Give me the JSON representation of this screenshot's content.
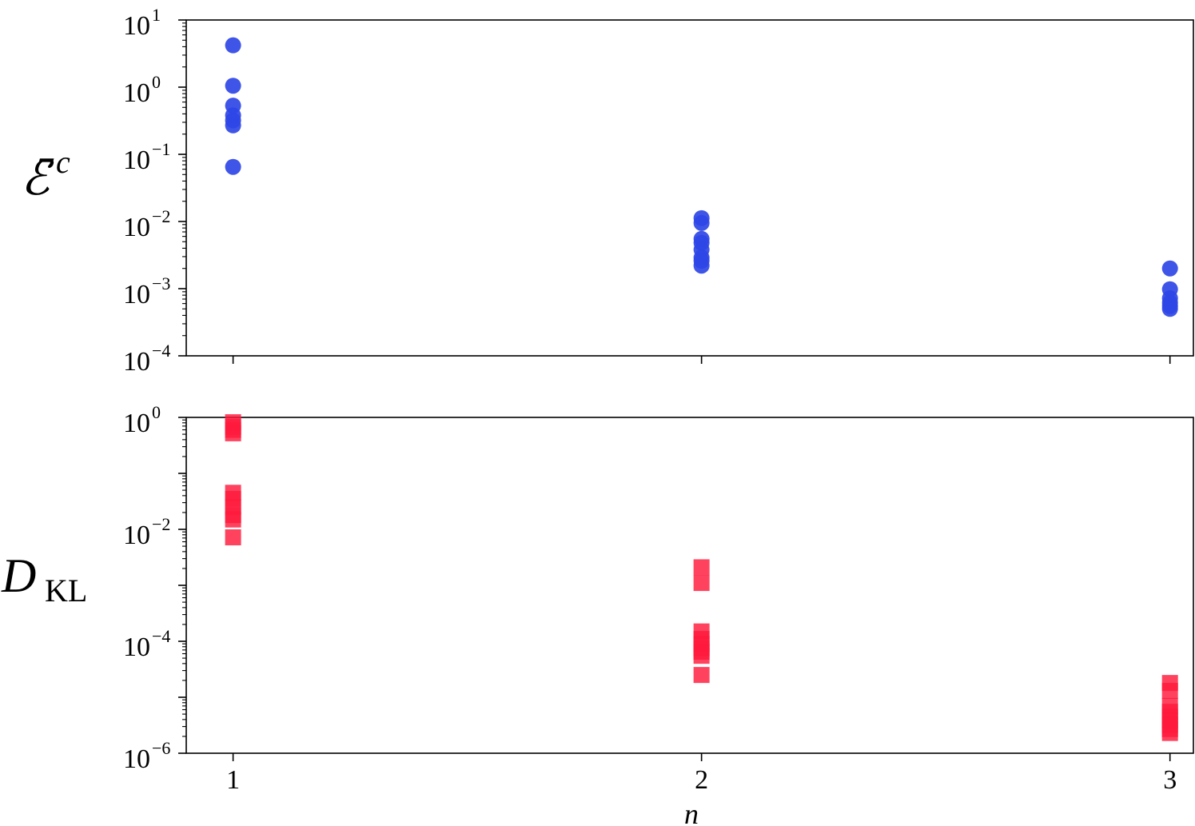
{
  "chart_data": [
    {
      "type": "scatter",
      "panel": "top",
      "ylabel": {
        "base": "ℰ̄",
        "sup": "c"
      },
      "yscale": "log",
      "ylim": [
        0.0001,
        10
      ],
      "yticks": [
        {
          "base": "10",
          "exp": "1"
        },
        {
          "base": "10",
          "exp": "0"
        },
        {
          "base": "10",
          "exp": "−1"
        },
        {
          "base": "10",
          "exp": "−2"
        },
        {
          "base": "10",
          "exp": "−3"
        },
        {
          "base": "10",
          "exp": "−4"
        }
      ],
      "xlim": [
        0.9,
        3.05
      ],
      "xticks": [
        "1",
        "2",
        "3"
      ],
      "marker": "circle",
      "color": "#2f46e6",
      "series": [
        {
          "points": [
            [
              1,
              4.2
            ],
            [
              1,
              1.05
            ],
            [
              1,
              0.53
            ],
            [
              1,
              0.38
            ],
            [
              1,
              0.32
            ],
            [
              1,
              0.27
            ],
            [
              1,
              0.065
            ],
            [
              2,
              0.0112
            ],
            [
              2,
              0.0095
            ],
            [
              2,
              0.0055
            ],
            [
              2,
              0.0048
            ],
            [
              2,
              0.0038
            ],
            [
              2,
              0.0029
            ],
            [
              2,
              0.0026
            ],
            [
              2,
              0.0022
            ],
            [
              3,
              0.002
            ],
            [
              3,
              0.00098
            ],
            [
              3,
              0.00072
            ],
            [
              3,
              0.00062
            ],
            [
              3,
              0.00055
            ],
            [
              3,
              0.0005
            ]
          ]
        }
      ]
    },
    {
      "type": "scatter",
      "panel": "bottom",
      "ylabel": {
        "base": "D",
        "sub": "KL"
      },
      "yscale": "log",
      "ylim": [
        1e-06,
        1
      ],
      "yticks": [
        {
          "base": "10",
          "exp": "0"
        },
        {
          "base": "10",
          "exp": "−2"
        },
        {
          "base": "10",
          "exp": "−4"
        },
        {
          "base": "10",
          "exp": "−6"
        }
      ],
      "xlim": [
        0.9,
        3.05
      ],
      "xticks": [
        "1",
        "2",
        "3"
      ],
      "xlabel": "n",
      "marker": "square",
      "color": "#ff1a3c",
      "series": [
        {
          "points": [
            [
              1,
              0.82
            ],
            [
              1,
              0.68
            ],
            [
              1,
              0.6
            ],
            [
              1,
              0.52
            ],
            [
              1,
              0.045
            ],
            [
              1,
              0.035
            ],
            [
              1,
              0.025
            ],
            [
              1,
              0.018
            ],
            [
              1,
              0.015
            ],
            [
              1,
              0.0072
            ],
            [
              2,
              0.0021
            ],
            [
              2,
              0.0011
            ],
            [
              2,
              0.00015
            ],
            [
              2,
              0.00011
            ],
            [
              2,
              9e-05
            ],
            [
              2,
              7.5e-05
            ],
            [
              2,
              6.5e-05
            ],
            [
              2,
              5.5e-05
            ],
            [
              2,
              2.5e-05
            ],
            [
              3,
              1.8e-05
            ],
            [
              3,
              1.3e-05
            ],
            [
              3,
              7e-06
            ],
            [
              3,
              5.5e-06
            ],
            [
              3,
              4.5e-06
            ],
            [
              3,
              3.8e-06
            ],
            [
              3,
              3.2e-06
            ],
            [
              3,
              2.7e-06
            ],
            [
              3,
              2.3e-06
            ]
          ]
        }
      ]
    }
  ]
}
